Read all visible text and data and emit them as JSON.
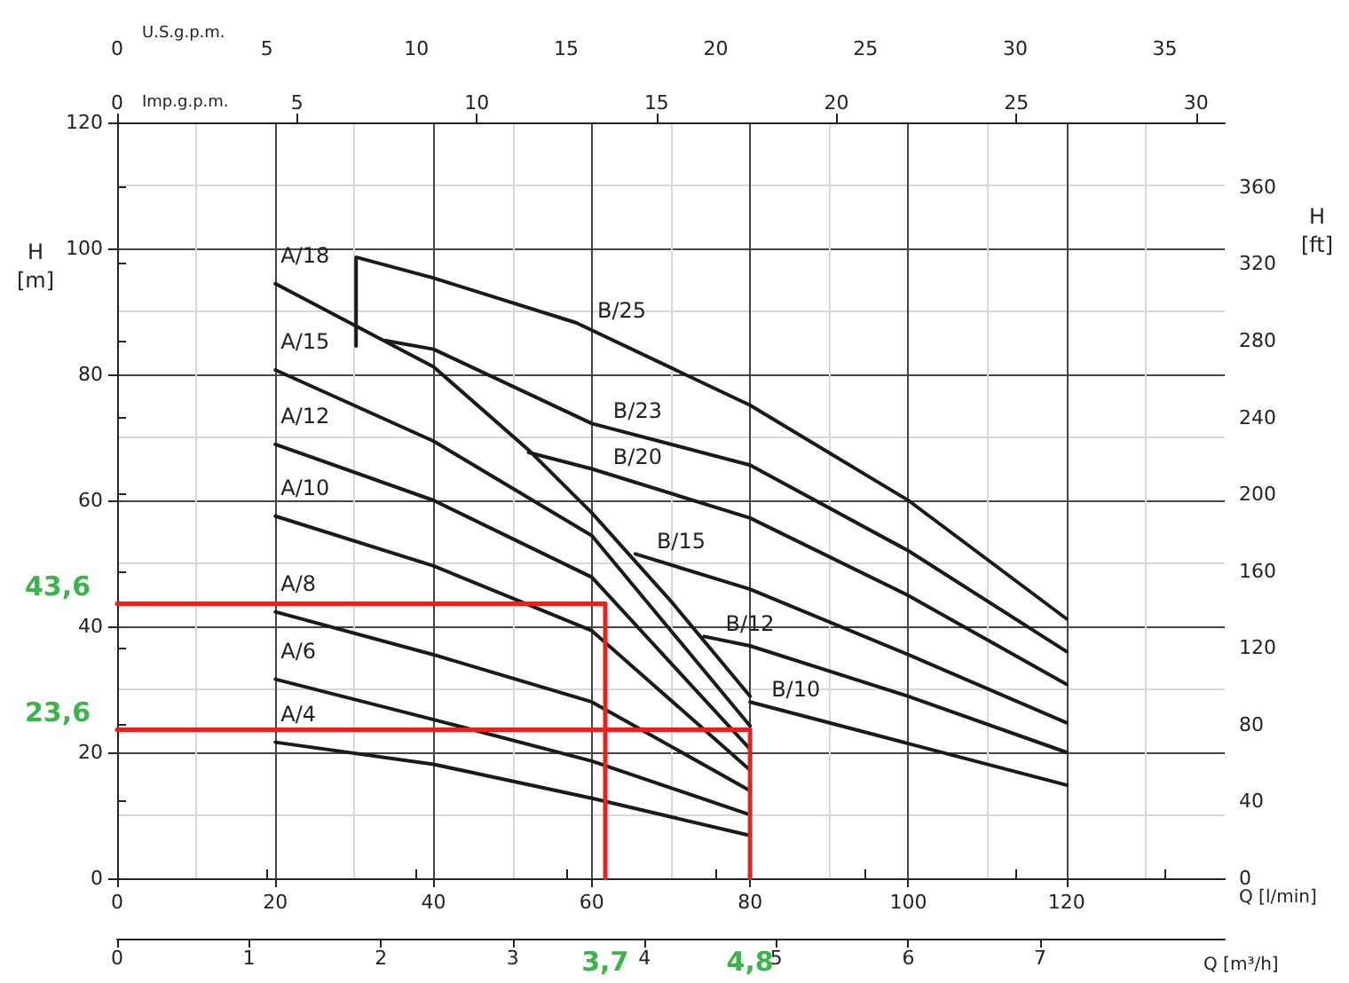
{
  "chart_data": {
    "type": "line",
    "xlabel": "Q [l/min]",
    "ylabel": "H [m]",
    "y2label": "H [ft]",
    "x2label": "U.S.g.p.m.",
    "xlim": [
      0,
      140
    ],
    "xticks": [
      0,
      20,
      40,
      60,
      80,
      100,
      120
    ],
    "ylim": [
      0,
      120
    ],
    "yticks": [
      0,
      20,
      40,
      60,
      80,
      100,
      120
    ],
    "x2lim": [
      0,
      37.0
    ],
    "x2ticks": [
      0,
      5,
      10,
      15,
      20,
      25,
      30,
      35
    ],
    "y2lim": [
      0,
      393.7
    ],
    "y2ticks": [
      0,
      40,
      80,
      120,
      160,
      200,
      240,
      280,
      320,
      360
    ],
    "grid": true,
    "marker": "none",
    "line_style": "solid",
    "series": [
      {
        "name": "A/18",
        "color": "#1a1a1a",
        "x": [
          20,
          40,
          52,
          60,
          70,
          80
        ],
        "values": [
          94.4,
          81.2,
          68,
          58,
          44,
          28.9
        ]
      },
      {
        "name": "A/15",
        "color": "#1a1a1a",
        "x": [
          20,
          40,
          60,
          80
        ],
        "values": [
          80.7,
          69.4,
          54.4,
          24.2
        ]
      },
      {
        "name": "A/12",
        "color": "#1a1a1a",
        "x": [
          20,
          40,
          60,
          80
        ],
        "values": [
          68.9,
          60,
          47.8,
          20.5
        ]
      },
      {
        "name": "A/10",
        "color": "#1a1a1a",
        "x": [
          20,
          40,
          60,
          80
        ],
        "values": [
          57.5,
          49.6,
          39.3,
          17.2
        ]
      },
      {
        "name": "A/8",
        "color": "#1a1a1a",
        "x": [
          20,
          40,
          60,
          80
        ],
        "values": [
          42.3,
          35.5,
          28,
          13.9
        ]
      },
      {
        "name": "A/6",
        "color": "#1a1a1a",
        "x": [
          20,
          40,
          60,
          80
        ],
        "values": [
          31.6,
          25.2,
          18.6,
          10.1
        ]
      },
      {
        "name": "A/4",
        "color": "#1a1a1a",
        "x": [
          20,
          40,
          60,
          80
        ],
        "values": [
          21.6,
          18.1,
          12.7,
          6.8
        ]
      },
      {
        "name": "B/25",
        "color": "#1a1a1a",
        "x": [
          30.2,
          30.2,
          40,
          58,
          80,
          100,
          120
        ],
        "values": [
          84.5,
          98.6,
          95.3,
          88.2,
          75.1,
          60,
          41.2
        ]
      },
      {
        "name": "B/23",
        "color": "#1a1a1a",
        "x": [
          33.8,
          40,
          60,
          80,
          100,
          120
        ],
        "values": [
          85.4,
          84,
          72.2,
          65.6,
          52,
          36
        ]
      },
      {
        "name": "B/20",
        "color": "#1a1a1a",
        "x": [
          52,
          60,
          80,
          100,
          120
        ],
        "values": [
          67.6,
          65,
          57.2,
          44.9,
          30.8
        ]
      },
      {
        "name": "B/15",
        "color": "#1a1a1a",
        "x": [
          65.5,
          80,
          100,
          120
        ],
        "values": [
          51.5,
          45.9,
          35.5,
          24.7
        ]
      },
      {
        "name": "B/12",
        "color": "#1a1a1a",
        "x": [
          74.2,
          80,
          100,
          120
        ],
        "values": [
          38.4,
          36.9,
          28.9,
          20
        ]
      },
      {
        "name": "B/10",
        "color": "#1a1a1a",
        "x": [
          80,
          100,
          120
        ],
        "values": [
          28,
          21.4,
          14.8
        ]
      },
      {
        "color": "#e32322",
        "x": [
          0,
          61.7,
          61.7
        ],
        "values": [
          43.6,
          43.6,
          0
        ]
      },
      {
        "color": "#e32322",
        "x": [
          0,
          80,
          80
        ],
        "values": [
          23.6,
          23.6,
          0
        ]
      }
    ],
    "annotations": [
      {
        "text": "43,6",
        "x": 0,
        "y": 43.6
      },
      {
        "text": "23,6",
        "x": 0,
        "y": 23.6
      },
      "Imp.g.p.m.",
      "0",
      "5",
      "10",
      "15",
      "20",
      "25",
      "30",
      "Q [m³/h]",
      "0",
      "1",
      "2",
      "3",
      "4",
      "5",
      "6",
      "7",
      "3,7",
      "4,8"
    ]
  }
}
